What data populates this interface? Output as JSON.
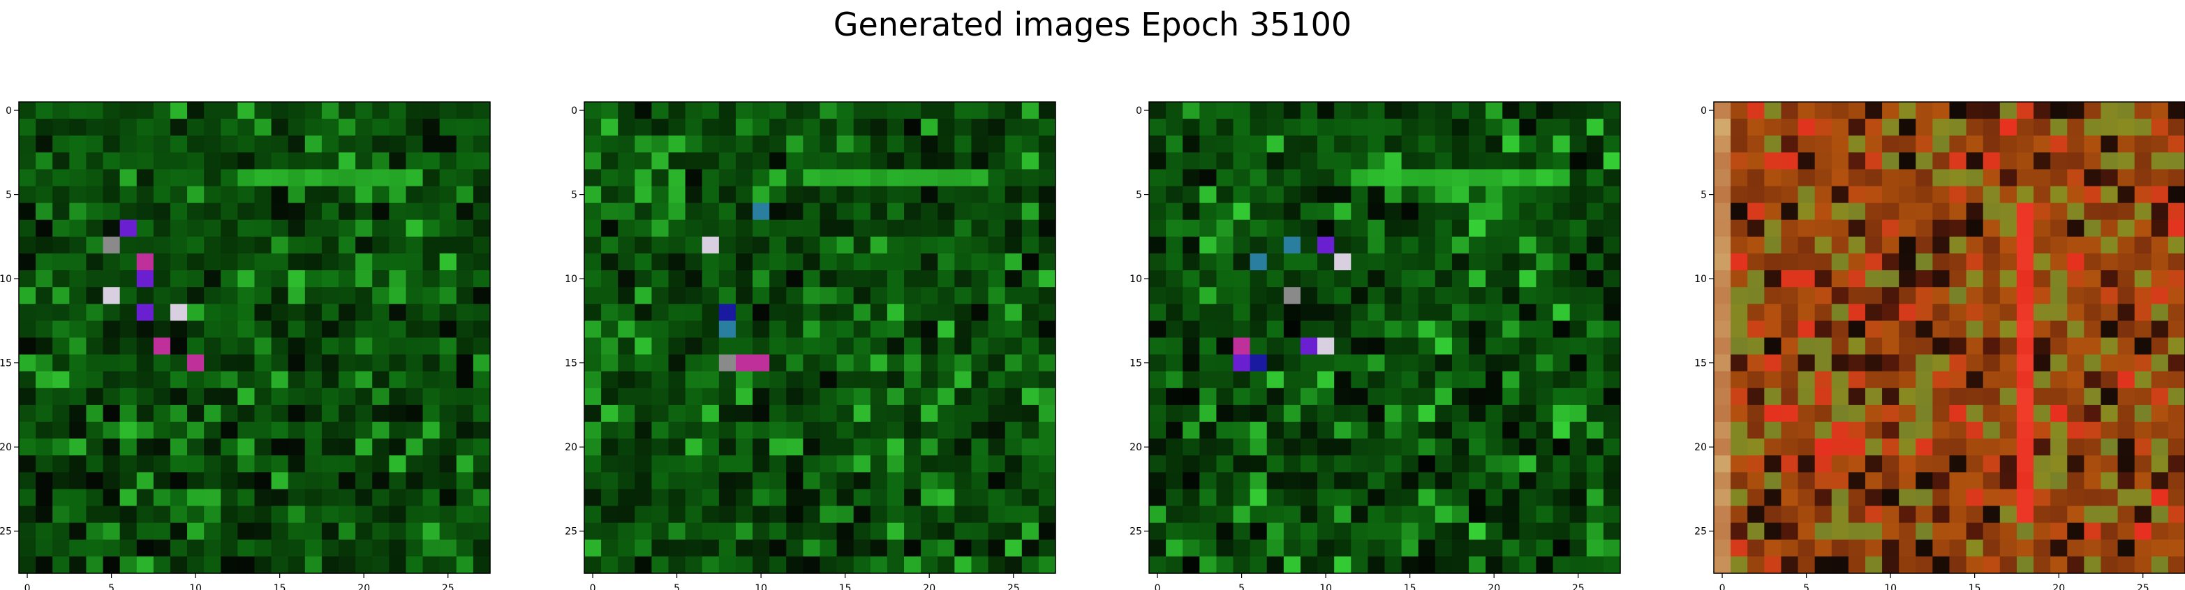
{
  "figure": {
    "title": "Generated images Epoch 35100"
  },
  "chart_data": [
    {
      "type": "heatmap",
      "title": "",
      "xlabel": "",
      "ylabel": "",
      "grid_size": [
        28,
        28
      ],
      "x_ticks": [
        "0",
        "5",
        "10",
        "15",
        "20",
        "25"
      ],
      "y_ticks": [
        "0",
        "5",
        "10",
        "15",
        "20",
        "25"
      ],
      "grid": false,
      "colors": {
        "base": "#0e6a10",
        "dark": "#063006",
        "bright": "#2fbf2f",
        "black": "#030803"
      },
      "palette": "green"
    },
    {
      "type": "heatmap",
      "title": "",
      "xlabel": "",
      "ylabel": "",
      "grid_size": [
        28,
        28
      ],
      "x_ticks": [
        "0",
        "5",
        "10",
        "15",
        "20",
        "25"
      ],
      "y_ticks": [
        "0",
        "5",
        "10",
        "15",
        "20",
        "25"
      ],
      "grid": false,
      "colors": {
        "base": "#0e6a10",
        "dark": "#063006",
        "bright": "#2fbf2f",
        "black": "#030803"
      },
      "palette": "green"
    },
    {
      "type": "heatmap",
      "title": "",
      "xlabel": "",
      "ylabel": "",
      "grid_size": [
        28,
        28
      ],
      "x_ticks": [
        "0",
        "5",
        "10",
        "15",
        "20",
        "25"
      ],
      "y_ticks": [
        "0",
        "5",
        "10",
        "15",
        "20",
        "25"
      ],
      "grid": false,
      "colors": {
        "base": "#0e6a10",
        "dark": "#063006",
        "bright": "#35d035",
        "black": "#020602"
      },
      "palette": "green"
    },
    {
      "type": "heatmap",
      "title": "",
      "xlabel": "",
      "ylabel": "",
      "grid_size": [
        28,
        28
      ],
      "x_ticks": [
        "0",
        "5",
        "10",
        "15",
        "20",
        "25"
      ],
      "y_ticks": [
        "0",
        "5",
        "10",
        "15",
        "20",
        "25"
      ],
      "grid": false,
      "colors": {
        "base": "#b0520e",
        "dark": "#5a1a0a",
        "bright": "#e83020",
        "olive": "#8a8a20"
      },
      "palette": "warm"
    }
  ]
}
